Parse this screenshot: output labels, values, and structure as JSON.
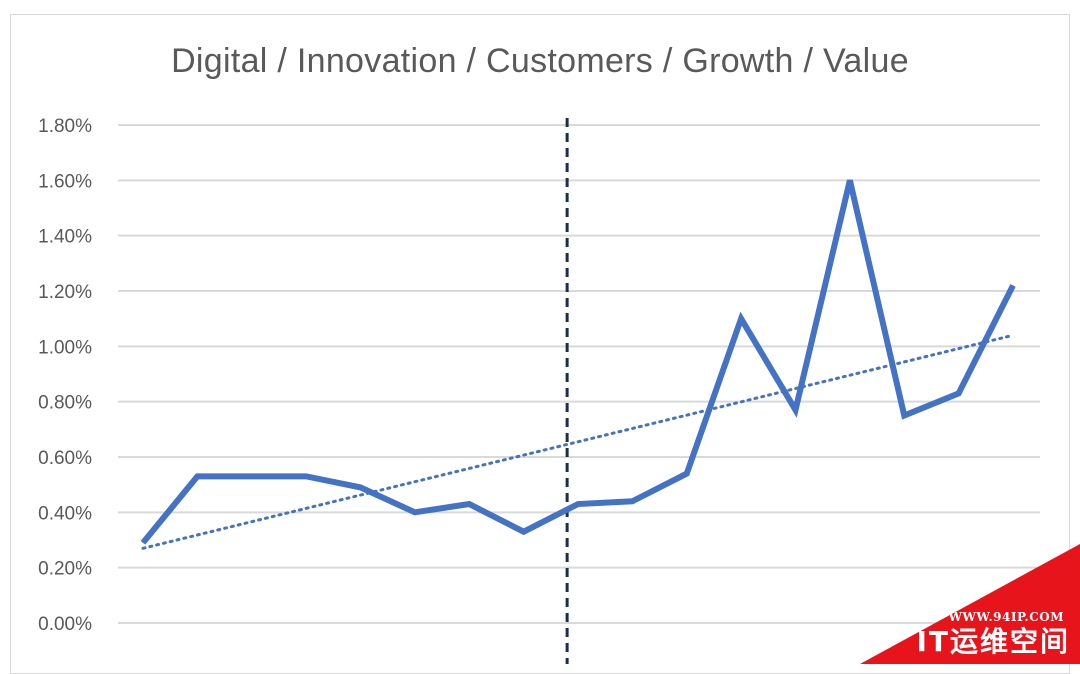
{
  "chart_data": {
    "type": "line",
    "title": "Digital / Innovation / Customers / Growth / Value",
    "xlabel": "",
    "ylabel": "",
    "y_ticks": [
      "0.00%",
      "0.20%",
      "0.40%",
      "0.60%",
      "0.80%",
      "1.00%",
      "1.20%",
      "1.40%",
      "1.60%",
      "1.80%"
    ],
    "ylim": [
      0,
      1.8
    ],
    "y_unit": "%",
    "grid": "horizontal",
    "x": [
      1,
      2,
      3,
      4,
      5,
      6,
      7,
      8,
      9,
      10,
      11,
      12,
      13,
      14,
      15,
      16,
      17
    ],
    "series": [
      {
        "values": [
          0.29,
          0.53,
          0.53,
          0.53,
          0.49,
          0.4,
          0.43,
          0.33,
          0.43,
          0.44,
          0.54,
          1.1,
          0.77,
          1.6,
          0.75,
          0.83,
          1.22
        ],
        "color": "#4472c4",
        "style": "solid"
      }
    ],
    "trendline": {
      "type": "linear",
      "start": 0.27,
      "end": 1.04,
      "color": "#4472c4",
      "style": "dotted"
    },
    "divider": {
      "after_point": 8.8,
      "color": "#1f2d4d",
      "style": "dashed"
    }
  },
  "watermark": {
    "url": "WWW.94IP.COM",
    "name": "IT运维空间",
    "color": "#e8141b"
  }
}
